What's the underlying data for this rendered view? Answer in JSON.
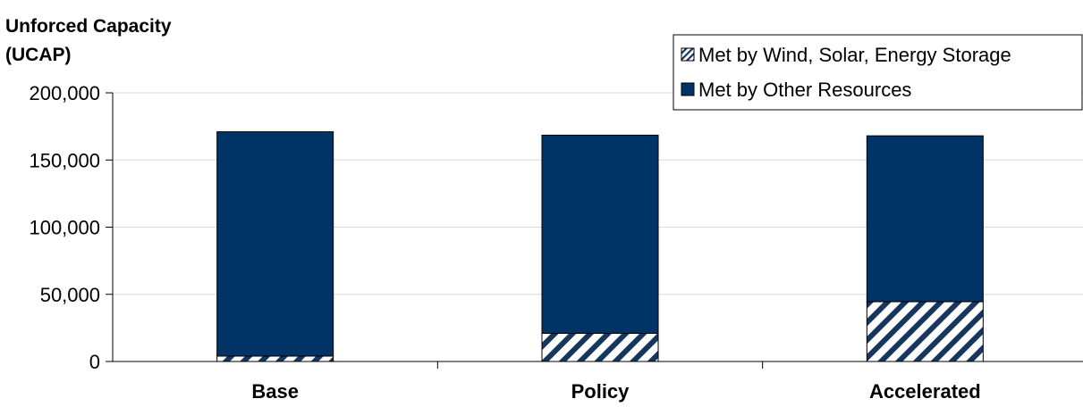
{
  "chart_data": {
    "type": "bar",
    "stacked": true,
    "ylabel_lines": [
      "Unforced Capacity",
      "(UCAP)"
    ],
    "categories": [
      "Base",
      "Policy",
      "Accelerated"
    ],
    "ylim": [
      0,
      200000
    ],
    "yticks": [
      0,
      50000,
      100000,
      150000,
      200000
    ],
    "ytick_labels": [
      "0",
      "50,000",
      "100,000",
      "150,000",
      "200,000"
    ],
    "grid": true,
    "legend_position": "top-right",
    "series": [
      {
        "name": "Met by Wind, Solar, Energy Storage",
        "values": [
          4000,
          21000,
          44500
        ],
        "pattern": "hatch",
        "color": "#ffffff",
        "hatch_color": "#17365d"
      },
      {
        "name": "Met by Other Resources",
        "values": [
          167000,
          147500,
          123500
        ],
        "pattern": "solid",
        "color": "#003366"
      }
    ]
  }
}
